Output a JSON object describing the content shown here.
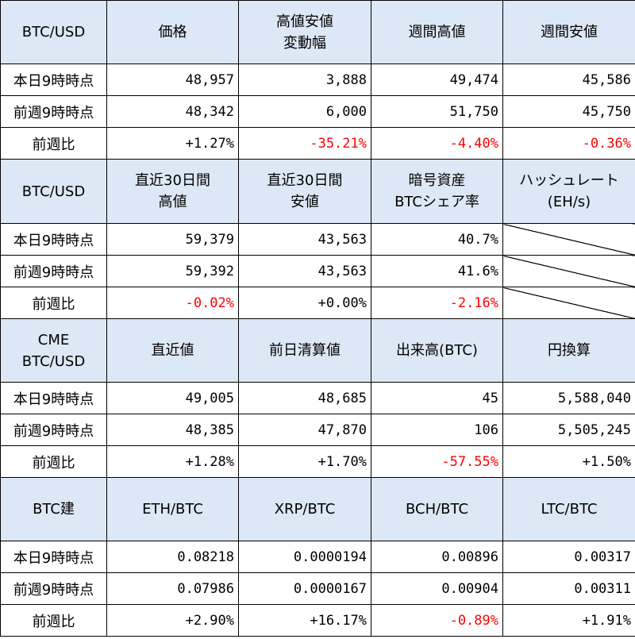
{
  "sections": [
    {
      "headers": [
        "BTC/USD",
        "価格",
        "高値安値\n変動幅",
        "週間高値",
        "週間安値"
      ],
      "rows": [
        {
          "label": "本日9時時点",
          "cells": [
            "48,957",
            "3,888",
            "49,474",
            "45,586"
          ]
        },
        {
          "label": "前週9時時点",
          "cells": [
            "48,342",
            "6,000",
            "51,750",
            "45,750"
          ]
        },
        {
          "label": "前週比",
          "cells": [
            "+1.27%",
            "-35.21%",
            "-4.40%",
            "-0.36%"
          ]
        }
      ]
    },
    {
      "headers": [
        "BTC/USD",
        "直近30日間\n高値",
        "直近30日間\n安値",
        "暗号資産\nBTCシェア率",
        "ハッシュレート\n(EH/s)"
      ],
      "rows": [
        {
          "label": "本日9時時点",
          "cells": [
            "59,379",
            "43,563",
            "40.7%",
            ""
          ]
        },
        {
          "label": "前週9時時点",
          "cells": [
            "59,392",
            "43,563",
            "41.6%",
            ""
          ]
        },
        {
          "label": "前週比",
          "cells": [
            "-0.02%",
            "+0.00%",
            "-2.16%",
            ""
          ]
        }
      ]
    },
    {
      "headers": [
        "CME\nBTC/USD",
        "直近値",
        "前日清算値",
        "出来高(BTC)",
        "円換算"
      ],
      "rows": [
        {
          "label": "本日9時時点",
          "cells": [
            "49,005",
            "48,685",
            "45",
            "5,588,040"
          ]
        },
        {
          "label": "前週9時時点",
          "cells": [
            "48,385",
            "47,870",
            "106",
            "5,505,245"
          ]
        },
        {
          "label": "前週比",
          "cells": [
            "+1.28%",
            "+1.70%",
            "-57.55%",
            "+1.50%"
          ]
        }
      ]
    },
    {
      "headers": [
        "BTC建",
        "ETH/BTC",
        "XRP/BTC",
        "BCH/BTC",
        "LTC/BTC"
      ],
      "rows": [
        {
          "label": "本日9時時点",
          "cells": [
            "0.08218",
            "0.0000194",
            "0.00896",
            "0.00317"
          ]
        },
        {
          "label": "前週9時時点",
          "cells": [
            "0.07986",
            "0.0000167",
            "0.00904",
            "0.00311"
          ]
        },
        {
          "label": "前週比",
          "cells": [
            "+2.90%",
            "+16.17%",
            "-0.89%",
            "+1.91%"
          ]
        }
      ]
    }
  ],
  "colors": {
    "header_bg": "#dce8f5",
    "negative": "#ff0000",
    "border": "#000000"
  }
}
